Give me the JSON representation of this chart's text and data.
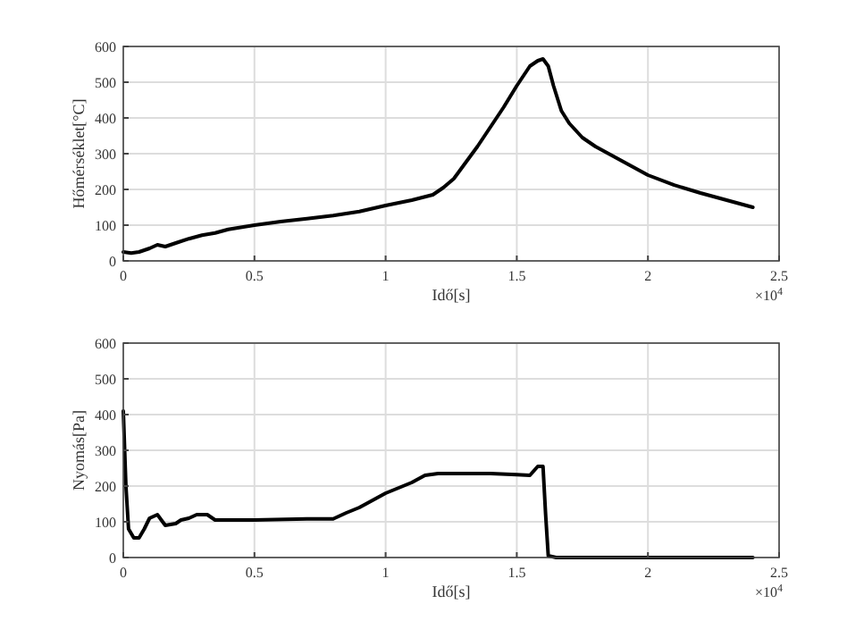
{
  "chart_data": [
    {
      "type": "line",
      "xlabel": "Idő[s]",
      "ylabel": "Hőmérséklet[°C]",
      "annotations": [
        "×10$^{4}$"
      ],
      "xlim": [
        0,
        2.5
      ],
      "ylim": [
        0,
        600
      ],
      "xticks": [
        0,
        0.5,
        1,
        1.5,
        2,
        2.5
      ],
      "yticks": [
        0,
        100,
        200,
        300,
        400,
        500,
        600
      ],
      "grid": true,
      "marker": "none",
      "line_style": "solid",
      "series": [
        {
          "color": "#000000",
          "x": [
            0,
            0.03,
            0.06,
            0.1,
            0.13,
            0.16,
            0.2,
            0.25,
            0.3,
            0.35,
            0.4,
            0.5,
            0.6,
            0.7,
            0.8,
            0.9,
            1.0,
            1.1,
            1.18,
            1.22,
            1.26,
            1.3,
            1.35,
            1.4,
            1.45,
            1.5,
            1.55,
            1.58,
            1.6,
            1.62,
            1.64,
            1.67,
            1.7,
            1.75,
            1.8,
            1.9,
            2.0,
            2.1,
            2.2,
            2.3,
            2.4
          ],
          "values": [
            25,
            22,
            25,
            35,
            45,
            40,
            50,
            62,
            72,
            78,
            88,
            100,
            110,
            118,
            127,
            138,
            155,
            170,
            185,
            205,
            230,
            270,
            320,
            375,
            430,
            490,
            545,
            560,
            565,
            545,
            490,
            420,
            385,
            345,
            320,
            280,
            240,
            212,
            190,
            170,
            150
          ]
        }
      ]
    },
    {
      "type": "line",
      "xlabel": "Idő[s]",
      "ylabel": "Nyomás[Pa]",
      "annotations": [
        "×10$^{4}$"
      ],
      "xlim": [
        0,
        2.5
      ],
      "ylim": [
        0,
        600
      ],
      "xticks": [
        0,
        0.5,
        1,
        1.5,
        2,
        2.5
      ],
      "yticks": [
        0,
        100,
        200,
        300,
        400,
        500,
        600
      ],
      "grid": true,
      "marker": "none",
      "line_style": "solid",
      "series": [
        {
          "color": "#000000",
          "x": [
            0,
            0.01,
            0.02,
            0.04,
            0.06,
            0.08,
            0.1,
            0.13,
            0.15,
            0.16,
            0.2,
            0.22,
            0.25,
            0.28,
            0.32,
            0.35,
            0.5,
            0.7,
            0.8,
            0.85,
            0.9,
            0.95,
            1.0,
            1.05,
            1.1,
            1.15,
            1.2,
            1.4,
            1.5,
            1.55,
            1.58,
            1.6,
            1.61,
            1.62,
            1.65,
            2.4
          ],
          "values": [
            410,
            200,
            80,
            55,
            55,
            80,
            110,
            120,
            100,
            90,
            95,
            105,
            110,
            120,
            120,
            105,
            105,
            108,
            108,
            125,
            140,
            160,
            180,
            195,
            210,
            230,
            235,
            235,
            232,
            230,
            255,
            255,
            120,
            5,
            0,
            0
          ]
        }
      ]
    }
  ]
}
